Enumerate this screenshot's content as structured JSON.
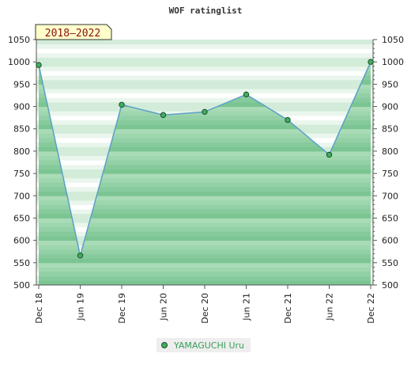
{
  "chart_data": {
    "type": "area",
    "title": "WOF ratinglist",
    "period_label": "2018–2022",
    "x": [
      "Dec 18",
      "Jun 19",
      "Dec 19",
      "Jun 20",
      "Dec 20",
      "Jun 21",
      "Dec 21",
      "Jun 22",
      "Dec 22"
    ],
    "series": [
      {
        "name": "YAMAGUCHI Uru",
        "values": [
          993,
          566,
          904,
          881,
          888,
          927,
          870,
          792,
          1000
        ]
      }
    ],
    "ylim": [
      500,
      1050
    ],
    "yticks": [
      500,
      550,
      600,
      650,
      700,
      750,
      800,
      850,
      900,
      950,
      1000,
      1050
    ],
    "colors": {
      "fill": "#7fc796",
      "line": "#5ba0c8",
      "marker": "#3fae5f"
    },
    "legend_position": "bottom"
  }
}
